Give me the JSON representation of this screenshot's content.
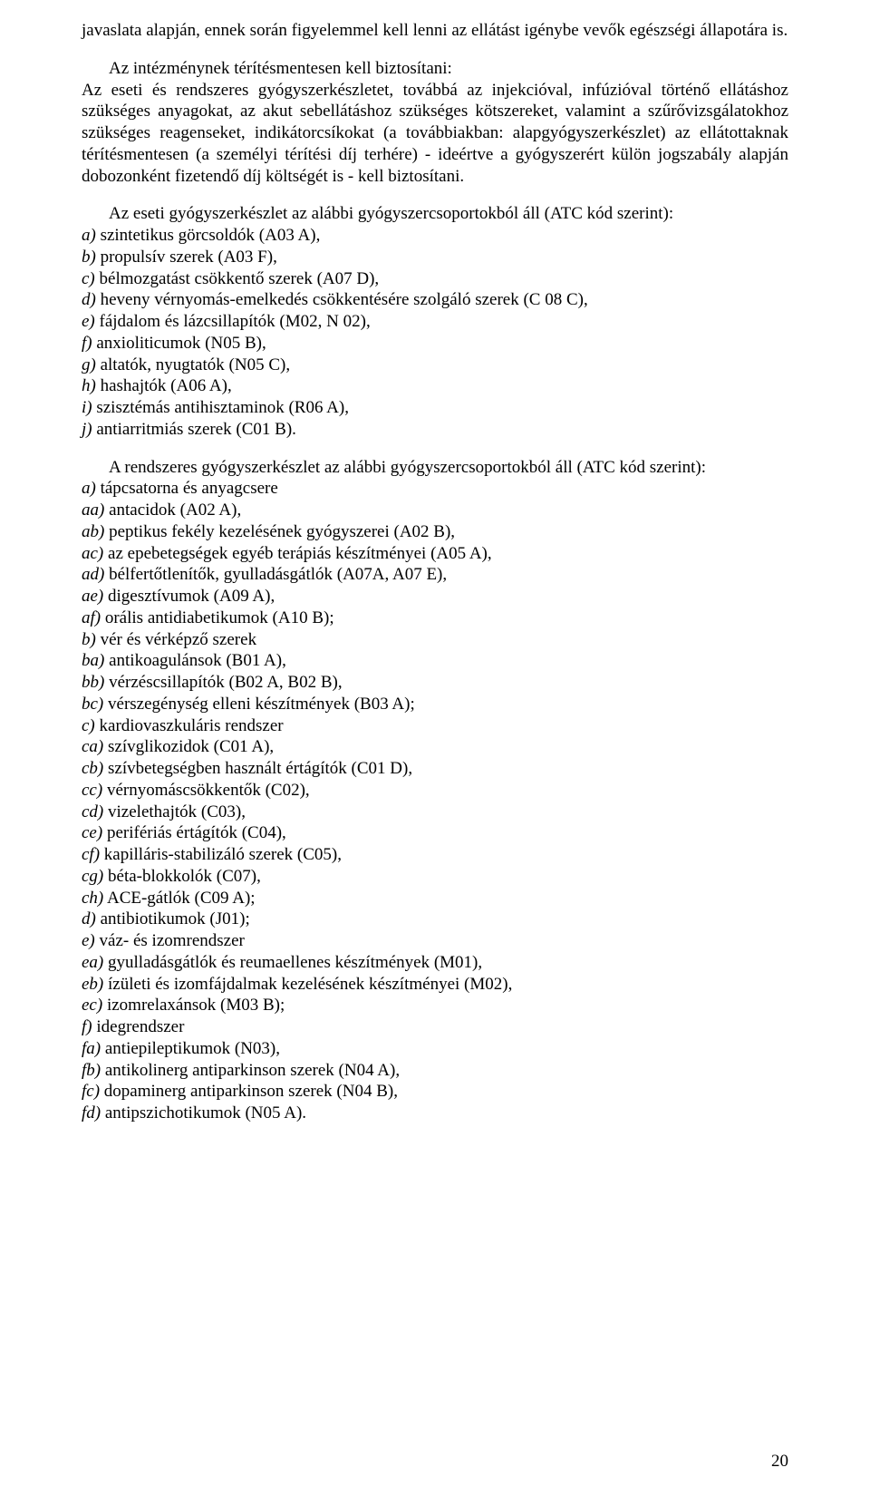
{
  "top_fragment": "javaslata alapján, ennek során figyelemmel kell lenni az ellátást igénybe vevők egészségi állapotára is.",
  "para2": "Az intézménynek térítésmentesen kell biztosítani:\nAz eseti és rendszeres gyógyszerkészletet, továbbá az injekcióval, infúzióval történő ellátáshoz szükséges anyagokat, az akut sebellátáshoz szükséges kötszereket, valamint a szűrővizsgálatokhoz szükséges reagenseket, indikátorcsíkokat (a továbbiakban: alapgyógyszerkészlet) az ellátottaknak térítésmentesen (a személyi térítési díj terhére) - ideértve a gyógyszerért külön jogszabály alapján dobozonként fizetendő díj költségét is - kell biztosítani.",
  "eseti_intro": "Az eseti gyógyszerkészlet az alábbi gyógyszercsoportokból áll (ATC kód szerint):",
  "eseti_items": [
    {
      "m": "a)",
      "t": " szintetikus görcsoldók (A03 A),"
    },
    {
      "m": "b)",
      "t": " propulsív szerek (A03 F),"
    },
    {
      "m": "c)",
      "t": " bélmozgatást csökkentő szerek (A07 D),"
    },
    {
      "m": "d)",
      "t": " heveny vérnyomás-emelkedés csökkentésére szolgáló szerek (C 08 C),"
    },
    {
      "m": "e)",
      "t": " fájdalom és lázcsillapítók (M02, N 02),"
    },
    {
      "m": "f)",
      "t": " anxioliticumok (N05 B),"
    },
    {
      "m": "g)",
      "t": " altatók, nyugtatók (N05 C),"
    },
    {
      "m": "h)",
      "t": " hashajtók (A06 A),"
    },
    {
      "m": "i)",
      "t": " szisztémás antihisztaminok (R06 A),"
    },
    {
      "m": "j)",
      "t": " antiarritmiás szerek (C01 B)."
    }
  ],
  "rendszeres_intro": "A rendszeres gyógyszerkészlet az alábbi gyógyszercsoportokból áll (ATC kód szerint):",
  "rendszeres_items": [
    {
      "m": "a)",
      "t": " tápcsatorna és anyagcsere"
    },
    {
      "m": "aa)",
      "t": " antacidok (A02 A),"
    },
    {
      "m": "ab)",
      "t": " peptikus fekély kezelésének gyógyszerei (A02 B),"
    },
    {
      "m": "ac)",
      "t": " az epebetegségek egyéb terápiás készítményei (A05 A),"
    },
    {
      "m": "ad)",
      "t": " bélfertőtlenítők, gyulladásgátlók (A07A, A07 E),"
    },
    {
      "m": "ae)",
      "t": " digesztívumok (A09 A),"
    },
    {
      "m": "af)",
      "t": " orális antidiabetikumok (A10 B);"
    },
    {
      "m": "b)",
      "t": " vér és vérképző szerek"
    },
    {
      "m": "ba)",
      "t": " antikoagulánsok (B01 A),"
    },
    {
      "m": "bb)",
      "t": " vérzéscsillapítók (B02 A, B02 B),"
    },
    {
      "m": "bc)",
      "t": " vérszegénység elleni készítmények (B03 A);"
    },
    {
      "m": "c)",
      "t": " kardiovaszkuláris rendszer"
    },
    {
      "m": "ca)",
      "t": " szívglikozidok (C01 A),"
    },
    {
      "m": "cb)",
      "t": " szívbetegségben használt értágítók (C01 D),"
    },
    {
      "m": "cc)",
      "t": " vérnyomáscsökkentők (C02),"
    },
    {
      "m": "cd)",
      "t": " vizelethajtók (C03),"
    },
    {
      "m": "ce)",
      "t": " perifériás értágítók (C04),"
    },
    {
      "m": "cf)",
      "t": " kapilláris-stabilizáló szerek (C05),"
    },
    {
      "m": "cg)",
      "t": " béta-blokkolók (C07),"
    },
    {
      "m": "ch)",
      "t": " ACE-gátlók (C09 A);"
    },
    {
      "m": "d)",
      "t": " antibiotikumok (J01);"
    },
    {
      "m": "e)",
      "t": " váz- és izomrendszer"
    },
    {
      "m": "ea)",
      "t": " gyulladásgátlók és reumaellenes készítmények (M01),"
    },
    {
      "m": "eb)",
      "t": " ízületi és izomfájdalmak kezelésének készítményei (M02),"
    },
    {
      "m": "ec)",
      "t": " izomrelaxánsok (M03 B);"
    },
    {
      "m": "f)",
      "t": " idegrendszer"
    },
    {
      "m": "fa)",
      "t": " antiepileptikumok (N03),"
    },
    {
      "m": "fb)",
      "t": " antikolinerg antiparkinson szerek (N04 A),"
    },
    {
      "m": "fc)",
      "t": " dopaminerg antiparkinson szerek (N04 B),"
    },
    {
      "m": "fd)",
      "t": " antipszichotikumok (N05 A)."
    }
  ],
  "page_number": "20"
}
